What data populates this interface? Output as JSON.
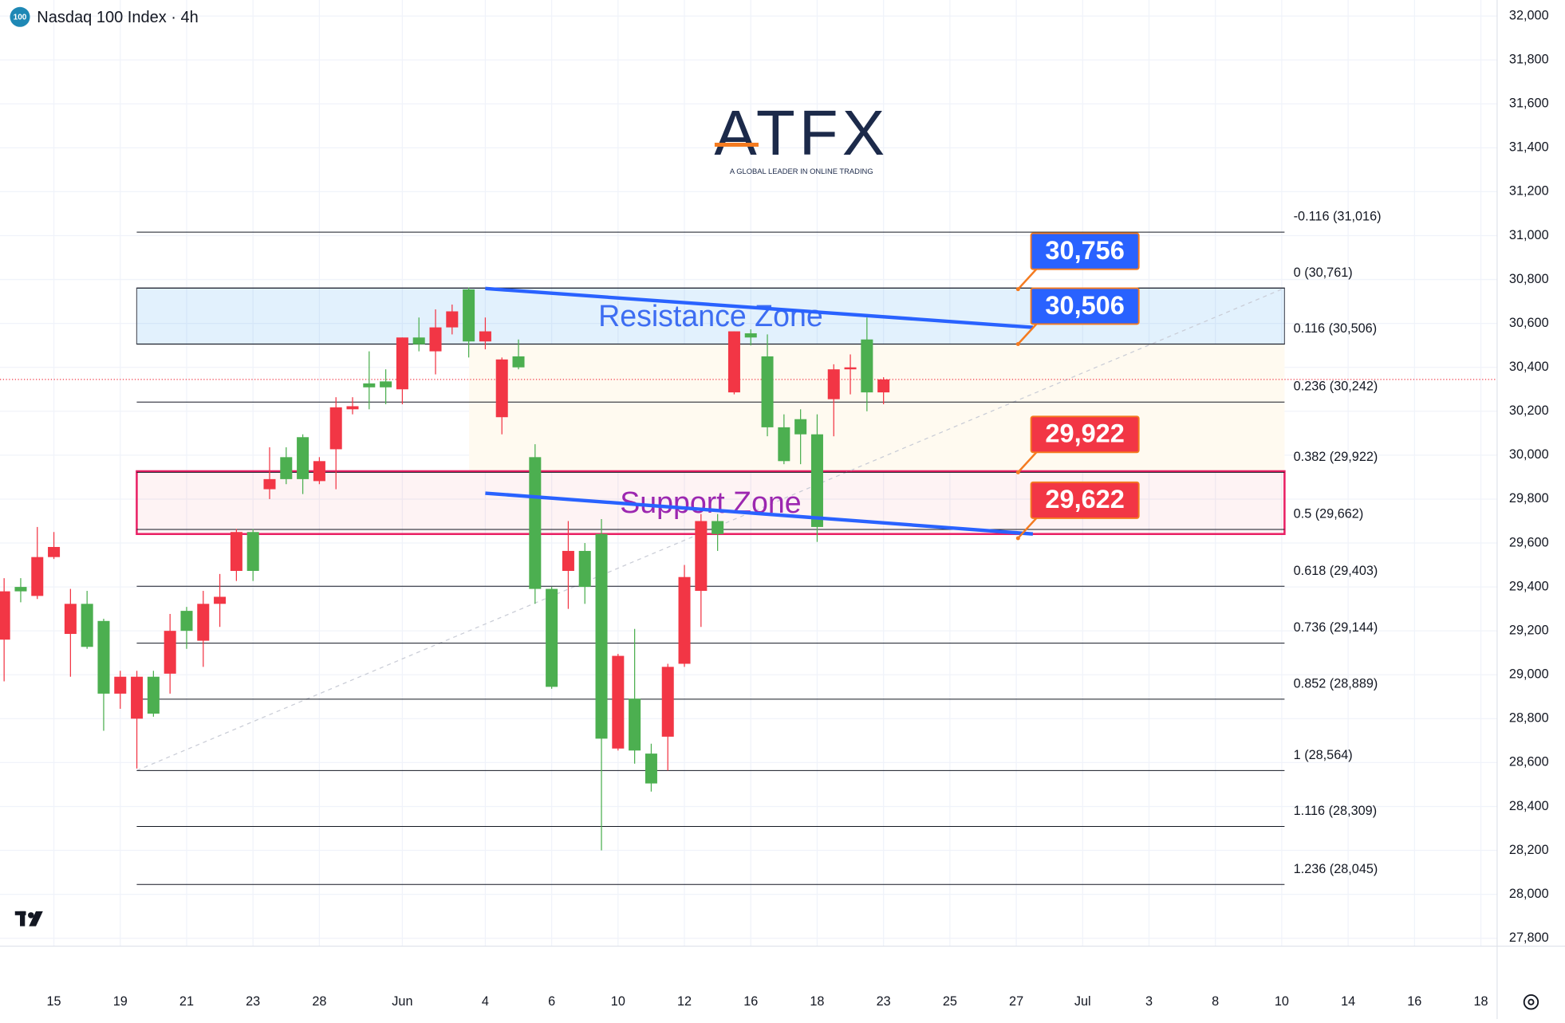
{
  "chart_data": {
    "type": "candlestick",
    "title": "Nasdaq 100 Index · 4h",
    "badge": "100",
    "logo": {
      "name": "ATFX",
      "tagline": "A GLOBAL LEADER IN ONLINE TRADING"
    },
    "xlim": [
      -1.624,
      43.49
    ],
    "ylim": [
      27764,
      32073
    ],
    "xticks": [
      {
        "value": 0,
        "label": "15"
      },
      {
        "value": 2,
        "label": "19"
      },
      {
        "value": 4,
        "label": "21"
      },
      {
        "value": 6,
        "label": "23"
      },
      {
        "value": 8,
        "label": "28"
      },
      {
        "value": 10.5,
        "label": "Jun"
      },
      {
        "value": 13,
        "label": "4"
      },
      {
        "value": 15,
        "label": "6"
      },
      {
        "value": 17,
        "label": "10"
      },
      {
        "value": 19,
        "label": "12"
      },
      {
        "value": 21,
        "label": "16"
      },
      {
        "value": 23,
        "label": "18"
      },
      {
        "value": 25,
        "label": "23"
      },
      {
        "value": 27,
        "label": "25"
      },
      {
        "value": 29,
        "label": "27"
      },
      {
        "value": 31,
        "label": "Jul"
      },
      {
        "value": 33,
        "label": "3"
      },
      {
        "value": 35,
        "label": "8"
      },
      {
        "value": 37,
        "label": "10"
      },
      {
        "value": 39,
        "label": "14"
      },
      {
        "value": 41,
        "label": "16"
      },
      {
        "value": 43,
        "label": "18"
      }
    ],
    "yticks": [
      {
        "value": 27800,
        "label": "27,800"
      },
      {
        "value": 28000,
        "label": "28,000"
      },
      {
        "value": 28200,
        "label": "28,200"
      },
      {
        "value": 28400,
        "label": "28,400"
      },
      {
        "value": 28600,
        "label": "28,600"
      },
      {
        "value": 28800,
        "label": "28,800"
      },
      {
        "value": 29000,
        "label": "29,000"
      },
      {
        "value": 29200,
        "label": "29,200"
      },
      {
        "value": 29400,
        "label": "29,400"
      },
      {
        "value": 29600,
        "label": "29,600"
      },
      {
        "value": 29800,
        "label": "29,800"
      },
      {
        "value": 30000,
        "label": "30,000"
      },
      {
        "value": 30200,
        "label": "30,200"
      },
      {
        "value": 30400,
        "label": "30,400"
      },
      {
        "value": 30600,
        "label": "30,600"
      },
      {
        "value": 30800,
        "label": "30,800"
      },
      {
        "value": 31000,
        "label": "31,000"
      },
      {
        "value": 31200,
        "label": "31,200"
      },
      {
        "value": 31400,
        "label": "31,400"
      },
      {
        "value": 31600,
        "label": "31,600"
      },
      {
        "value": 31800,
        "label": "31,800"
      },
      {
        "value": 32000,
        "label": "32,000"
      }
    ],
    "grid": true,
    "up_color": "#4caf50",
    "down_color": "#f23645",
    "x": [
      -1.5,
      -1,
      -0.5,
      0,
      0.5,
      1,
      1.5,
      2,
      2.5,
      3,
      3.5,
      4,
      4.5,
      5,
      5.5,
      6,
      6.5,
      7,
      7.5,
      8,
      8.5,
      9,
      9.5,
      10,
      10.5,
      11,
      11.5,
      12,
      12.5,
      13,
      13.5,
      14,
      14.5,
      15,
      15.5,
      16,
      16.5,
      17,
      17.5,
      18,
      18.5,
      19,
      19.5,
      20,
      20.5,
      21,
      21.5,
      22,
      22.5,
      23,
      23.5,
      24,
      24.5,
      25
    ],
    "open": [
      29380,
      29380,
      29536,
      29582,
      29323,
      29127,
      28914,
      28991,
      28991,
      28823,
      29200,
      29200,
      29323,
      29355,
      29650,
      29473,
      29891,
      29891,
      29891,
      29973,
      30218,
      30223,
      30309,
      30309,
      30536,
      30505,
      30582,
      30655,
      30518,
      30564,
      30436,
      30400,
      29391,
      28945,
      29564,
      29400,
      28709,
      29086,
      28655,
      28505,
      29036,
      29445,
      29700,
      29641,
      30564,
      30536,
      30127,
      29973,
      30095,
      29673,
      30391,
      30400,
      30286,
      30345
    ],
    "high": [
      29440,
      29440,
      29673,
      29650,
      29391,
      29382,
      29255,
      29018,
      29018,
      29018,
      29277,
      29309,
      29382,
      29459,
      29664,
      29664,
      30036,
      30036,
      30095,
      29991,
      30264,
      30264,
      30473,
      30391,
      30536,
      30627,
      30664,
      30686,
      30764,
      30627,
      30445,
      30527,
      30050,
      29400,
      29700,
      29600,
      29709,
      29095,
      29209,
      28686,
      29050,
      29500,
      29732,
      29732,
      30564,
      30573,
      30550,
      30186,
      30209,
      30186,
      30414,
      30459,
      30627,
      30355
    ],
    "low": [
      28970,
      29330,
      29345,
      29527,
      28991,
      29118,
      28745,
      28845,
      28573,
      28809,
      28914,
      29118,
      29036,
      29218,
      29427,
      29427,
      29800,
      29868,
      29823,
      29868,
      29845,
      30186,
      30209,
      30232,
      30232,
      30473,
      30368,
      30550,
      30445,
      30482,
      30095,
      30391,
      29323,
      28936,
      29300,
      29323,
      28200,
      28655,
      28595,
      28468,
      28564,
      29036,
      29218,
      29564,
      30277,
      30500,
      30086,
      29959,
      29959,
      29605,
      30086,
      30277,
      30200,
      30232
    ],
    "close": [
      29160,
      29400,
      29359,
      29536,
      29186,
      29323,
      29245,
      28914,
      28800,
      28991,
      29005,
      29291,
      29155,
      29323,
      29473,
      29650,
      29845,
      29991,
      30082,
      29882,
      30027,
      30209,
      30327,
      30336,
      30300,
      30536,
      30473,
      30582,
      30755,
      30518,
      30173,
      30450,
      29991,
      29391,
      29473,
      29564,
      29641,
      28664,
      28891,
      28641,
      28718,
      29050,
      29382,
      29700,
      30286,
      30555,
      30450,
      30127,
      30164,
      30095,
      30255,
      30391,
      30527,
      30286
    ],
    "last_price": 30345,
    "fib": {
      "levels": [
        31016,
        30761,
        30506,
        30242,
        29922,
        29662,
        29403,
        29144,
        28889,
        28564,
        28309,
        28045
      ],
      "labels": [
        "-0.116 (31,016)",
        "0 (30,761)",
        "0.116 (30,506)",
        "0.236 (30,242)",
        "0.382 (29,922)",
        "0.5 (29,662)",
        "0.618 (29,403)",
        "0.736 (29,144)",
        "0.852 (28,889)",
        "1 (28,564)",
        "1.116 (28,309)",
        "1.236 (28,045)"
      ]
    },
    "zones": [
      {
        "name": "Resistance Zone",
        "values": [
          30761,
          30506
        ]
      },
      {
        "name": "Support Zone",
        "values": [
          29927,
          29641
        ]
      }
    ],
    "trendlines": [
      {
        "x": [
          13,
          29.5
        ],
        "values": [
          30759,
          30582
        ]
      },
      {
        "x": [
          13,
          29.5
        ],
        "values": [
          29827,
          29641
        ]
      }
    ],
    "callouts": {
      "values": [
        30756,
        30506,
        29922,
        29622
      ],
      "value_labels": [
        "30,756",
        "30,506",
        "29,922",
        "29,622"
      ],
      "colors": [
        "#2962ff",
        "#2962ff",
        "#f23645",
        "#f23645"
      ]
    }
  }
}
